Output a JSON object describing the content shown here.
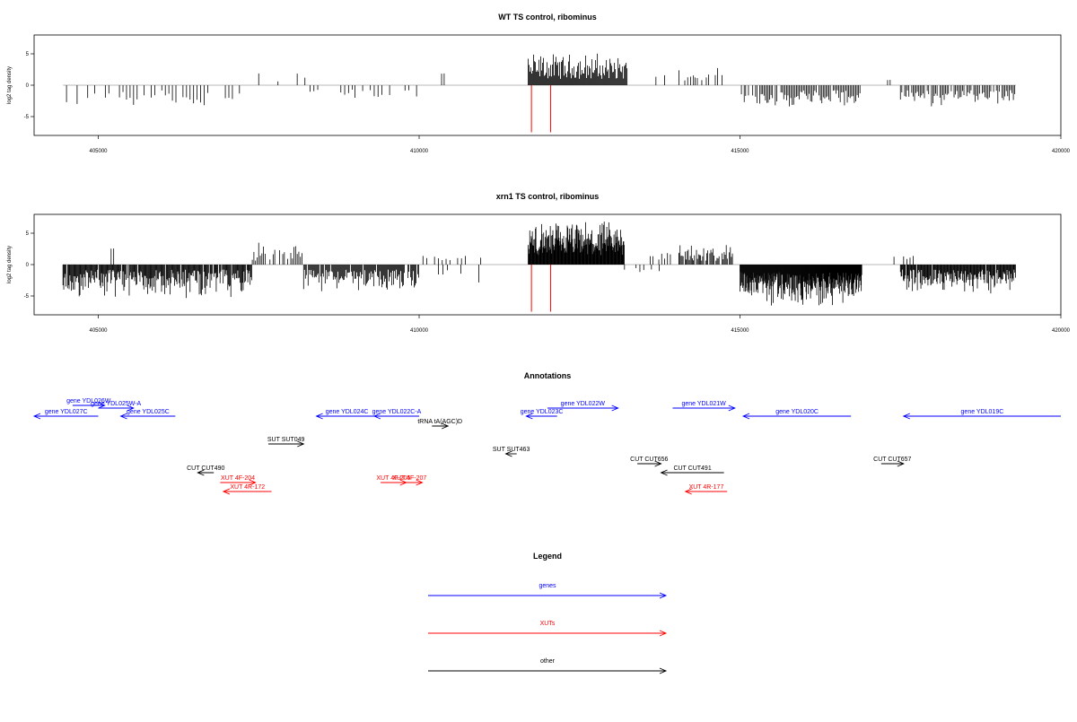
{
  "colors": {
    "gene": "#0000ff",
    "xut": "#ff0000",
    "other": "#000000",
    "highlight": "#ff0000",
    "zero_line": "#a0a0a0"
  },
  "chart_data": [
    {
      "type": "bar",
      "title": "WT TS control, ribominus",
      "ylabel": "log2 tag density",
      "xlim": [
        404000,
        420000
      ],
      "ylim": [
        -8,
        8
      ],
      "x_ticks": [
        405000,
        410000,
        415000,
        420000
      ],
      "x_tick_labels": [
        "405000",
        "410000",
        "415000",
        "420000"
      ],
      "y_ticks": [
        -5,
        0,
        5
      ],
      "y_tick_labels": [
        "-5",
        "0",
        "5"
      ],
      "highlight_x": [
        411750,
        412050
      ],
      "highlight_y": [
        -7.5,
        0
      ],
      "segments": [
        {
          "x0": 404450,
          "x1": 407200,
          "sign": -1,
          "min": 0.8,
          "max": 3.8,
          "step": 55,
          "fill": 0.55
        },
        {
          "x0": 407500,
          "x1": 408300,
          "sign": 1,
          "min": 0.6,
          "max": 2.6,
          "step": 60,
          "fill": 0.5
        },
        {
          "x0": 408300,
          "x1": 409000,
          "sign": -1,
          "min": 0.6,
          "max": 2.3,
          "step": 60,
          "fill": 0.45
        },
        {
          "x0": 409000,
          "x1": 410000,
          "sign": -1,
          "min": 0.6,
          "max": 2.8,
          "step": 60,
          "fill": 0.4
        },
        {
          "x0": 410350,
          "x1": 410400,
          "sign": 1,
          "min": 1.8,
          "max": 2.0,
          "step": 40,
          "fill": 1
        },
        {
          "x0": 411700,
          "x1": 413250,
          "sign": 1,
          "min": 1.0,
          "max": 5.5,
          "step": 14,
          "fill": 1
        },
        {
          "x0": 413600,
          "x1": 414300,
          "sign": 1,
          "min": 0.6,
          "max": 2.6,
          "step": 45,
          "fill": 0.55
        },
        {
          "x0": 414300,
          "x1": 414800,
          "sign": 1,
          "min": 0.6,
          "max": 2.8,
          "step": 35,
          "fill": 0.6
        },
        {
          "x0": 415000,
          "x1": 416900,
          "sign": -1,
          "min": 0.8,
          "max": 4.0,
          "step": 22,
          "fill": 0.85
        },
        {
          "x0": 417300,
          "x1": 417350,
          "sign": 1,
          "min": 0.8,
          "max": 1.0,
          "step": 40,
          "fill": 1
        },
        {
          "x0": 417500,
          "x1": 419300,
          "sign": -1,
          "min": 0.8,
          "max": 3.5,
          "step": 22,
          "fill": 0.85
        }
      ]
    },
    {
      "type": "bar",
      "title": "xrn1 TS control, ribominus",
      "ylabel": "log2 tag density",
      "xlim": [
        404000,
        420000
      ],
      "ylim": [
        -8,
        8
      ],
      "x_ticks": [
        405000,
        410000,
        415000,
        420000
      ],
      "x_tick_labels": [
        "405000",
        "410000",
        "415000",
        "420000"
      ],
      "y_ticks": [
        -5,
        0,
        5
      ],
      "y_tick_labels": [
        "-5",
        "0",
        "5"
      ],
      "highlight_x": [
        411750,
        412050
      ],
      "highlight_y": [
        -7.5,
        0
      ],
      "segments": [
        {
          "x0": 404450,
          "x1": 407400,
          "sign": -1,
          "min": 0.8,
          "max": 5.8,
          "step": 12,
          "fill": 0.95
        },
        {
          "x0": 405200,
          "x1": 405250,
          "sign": 1,
          "min": 2.5,
          "max": 2.7,
          "step": 40,
          "fill": 1
        },
        {
          "x0": 407400,
          "x1": 408200,
          "sign": 1,
          "min": 0.6,
          "max": 3.8,
          "step": 25,
          "fill": 0.8
        },
        {
          "x0": 408200,
          "x1": 410000,
          "sign": -1,
          "min": 0.8,
          "max": 4.5,
          "step": 14,
          "fill": 0.9
        },
        {
          "x0": 410000,
          "x1": 411000,
          "sign": 1,
          "min": 0.5,
          "max": 1.8,
          "step": 60,
          "fill": 0.5
        },
        {
          "x0": 410300,
          "x1": 411000,
          "sign": -1,
          "min": 0.8,
          "max": 3.0,
          "step": 70,
          "fill": 0.4
        },
        {
          "x0": 411700,
          "x1": 413200,
          "sign": 1,
          "min": 1.5,
          "max": 7.3,
          "step": 8,
          "fill": 1
        },
        {
          "x0": 413200,
          "x1": 413900,
          "sign": -1,
          "min": 0.5,
          "max": 1.8,
          "step": 60,
          "fill": 0.4
        },
        {
          "x0": 413600,
          "x1": 414050,
          "sign": 1,
          "min": 0.6,
          "max": 2.6,
          "step": 45,
          "fill": 0.5
        },
        {
          "x0": 414050,
          "x1": 414900,
          "sign": 1,
          "min": 0.6,
          "max": 3.6,
          "step": 16,
          "fill": 0.9
        },
        {
          "x0": 415000,
          "x1": 416900,
          "sign": -1,
          "min": 1.2,
          "max": 7.2,
          "step": 7,
          "fill": 1
        },
        {
          "x0": 417400,
          "x1": 417700,
          "sign": 1,
          "min": 0.8,
          "max": 1.8,
          "step": 50,
          "fill": 0.6
        },
        {
          "x0": 417500,
          "x1": 419300,
          "sign": -1,
          "min": 0.8,
          "max": 4.8,
          "step": 11,
          "fill": 0.95
        }
      ]
    }
  ],
  "annotations": {
    "title": "Annotations",
    "xlim": [
      404000,
      420000
    ],
    "items": [
      {
        "label": "gene YDL027C",
        "start": 404000,
        "end": 405000,
        "dir": -1,
        "row": 2,
        "cls": "gene"
      },
      {
        "label": "gene YDL026W",
        "start": 404600,
        "end": 405100,
        "dir": 1,
        "row": 0,
        "cls": "gene"
      },
      {
        "label": "gene YDL025W-A",
        "start": 405000,
        "end": 405550,
        "dir": 1,
        "row": 1,
        "cls": "gene"
      },
      {
        "label": "gene YDL025C",
        "start": 405350,
        "end": 406200,
        "dir": -1,
        "row": 2,
        "cls": "gene"
      },
      {
        "label": "gene YDL024C",
        "start": 408400,
        "end": 409350,
        "dir": -1,
        "row": 2,
        "cls": "gene"
      },
      {
        "label": "gene YDL022C-A",
        "start": 409300,
        "end": 410000,
        "dir": -1,
        "row": 2,
        "cls": "gene"
      },
      {
        "label": "gene YDL023C",
        "start": 411670,
        "end": 412150,
        "dir": -1,
        "row": 2,
        "cls": "gene"
      },
      {
        "label": "gene YDL022W",
        "start": 412000,
        "end": 413100,
        "dir": 1,
        "row": 1,
        "cls": "gene"
      },
      {
        "label": "gene YDL021W",
        "start": 413950,
        "end": 414920,
        "dir": 1,
        "row": 1,
        "cls": "gene"
      },
      {
        "label": "gene YDL020C",
        "start": 415050,
        "end": 416730,
        "dir": -1,
        "row": 2,
        "cls": "gene"
      },
      {
        "label": "gene YDL019C",
        "start": 417550,
        "end": 420000,
        "dir": -1,
        "row": 2,
        "cls": "gene"
      },
      {
        "label": "tRNA tA(AGC)D",
        "start": 410200,
        "end": 410450,
        "dir": 1,
        "row": 3,
        "cls": "other"
      },
      {
        "label": "SUT SUT049",
        "start": 407650,
        "end": 408200,
        "dir": 1,
        "row": 4,
        "cls": "other"
      },
      {
        "label": "SUT SUT463",
        "start": 411350,
        "end": 411520,
        "dir": -1,
        "row": 5,
        "cls": "other"
      },
      {
        "label": "CUT CUT490",
        "start": 406550,
        "end": 406800,
        "dir": -1,
        "row": 7,
        "cls": "other"
      },
      {
        "label": "CUT CUT656",
        "start": 413400,
        "end": 413770,
        "dir": 1,
        "row": 6,
        "cls": "other"
      },
      {
        "label": "CUT CUT491",
        "start": 413770,
        "end": 414750,
        "dir": -1,
        "row": 7,
        "cls": "other"
      },
      {
        "label": "CUT CUT657",
        "start": 417200,
        "end": 417550,
        "dir": 1,
        "row": 6,
        "cls": "other"
      },
      {
        "label": "XUT 4F-204",
        "start": 406900,
        "end": 407450,
        "dir": 1,
        "row": 8,
        "cls": "xut"
      },
      {
        "label": "XUT 4R-172",
        "start": 406950,
        "end": 407700,
        "dir": -1,
        "row": 9,
        "cls": "xut"
      },
      {
        "label": "XUT 4F-205",
        "start": 409400,
        "end": 409800,
        "dir": 1,
        "row": 8,
        "cls": "xut"
      },
      {
        "label": "XUT 4F-207",
        "start": 409650,
        "end": 410050,
        "dir": 1,
        "row": 8,
        "cls": "xut"
      },
      {
        "label": "XUT 4R-177",
        "start": 414150,
        "end": 414800,
        "dir": -1,
        "row": 9,
        "cls": "xut"
      }
    ]
  },
  "legend": {
    "title": "Legend",
    "items": [
      {
        "label": "genes",
        "cls": "gene"
      },
      {
        "label": "XUTs",
        "cls": "xut"
      },
      {
        "label": "other",
        "cls": "other"
      }
    ]
  }
}
